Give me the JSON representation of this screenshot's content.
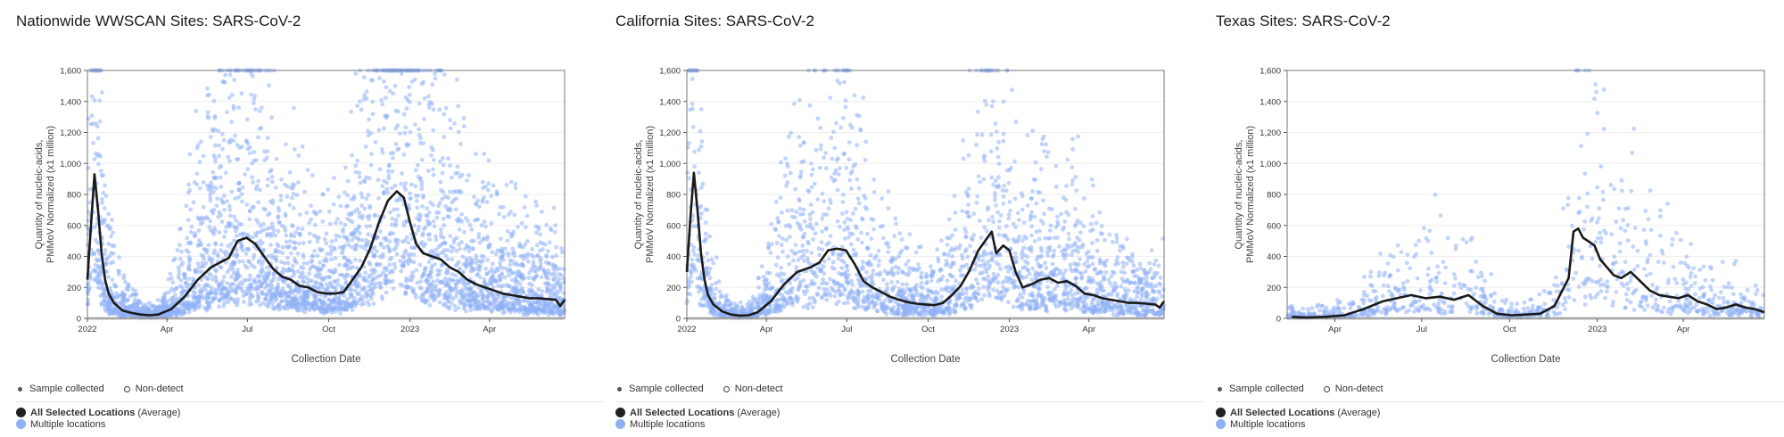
{
  "colors": {
    "point": "#8fb0f5",
    "line": "#1a1a1a",
    "axis": "#555555",
    "grid": "#eeeeee"
  },
  "legend": {
    "sample_collected": "Sample collected",
    "non_detect": "Non-detect",
    "average_bold": "All Selected Locations",
    "average_suffix": "(Average)",
    "multiple": "Multiple locations"
  },
  "chart_data": [
    {
      "type": "scatter",
      "title": "Nationwide WWSCAN Sites: SARS-CoV-2",
      "xlabel": "Collection Date",
      "ylabel": [
        "Quantity of nucleic-acids,",
        "PMMoV Normalized (x1 million)"
      ],
      "ylim": [
        0,
        1600
      ],
      "yticks": [
        "0",
        "200",
        "400",
        "600",
        "800",
        "1,000",
        "1,200",
        "1,400",
        "1,600"
      ],
      "xlim": [
        0,
        540
      ],
      "xticks": [
        {
          "label": "2022",
          "x": 0
        },
        {
          "label": "Apr",
          "x": 90
        },
        {
          "label": "Jul",
          "x": 181
        },
        {
          "label": "Oct",
          "x": 273
        },
        {
          "label": "2023",
          "x": 365
        },
        {
          "label": "Apr",
          "x": 455
        }
      ],
      "density": 1.0,
      "series": [
        {
          "name": "All Selected Locations (Average)",
          "x": [
            0,
            4,
            8,
            12,
            16,
            20,
            24,
            30,
            40,
            50,
            60,
            70,
            80,
            95,
            110,
            125,
            140,
            150,
            160,
            170,
            180,
            190,
            200,
            210,
            220,
            230,
            240,
            250,
            260,
            270,
            280,
            290,
            300,
            310,
            320,
            330,
            340,
            350,
            358,
            365,
            372,
            380,
            390,
            400,
            410,
            420,
            430,
            440,
            450,
            460,
            470,
            480,
            490,
            500,
            510,
            520,
            530,
            535,
            540
          ],
          "y": [
            250,
            600,
            930,
            700,
            420,
            250,
            160,
            100,
            50,
            35,
            25,
            20,
            25,
            60,
            140,
            250,
            330,
            360,
            390,
            500,
            520,
            480,
            400,
            320,
            270,
            250,
            210,
            200,
            170,
            160,
            160,
            170,
            250,
            330,
            450,
            620,
            760,
            820,
            780,
            620,
            480,
            420,
            400,
            380,
            330,
            300,
            250,
            220,
            200,
            180,
            160,
            150,
            140,
            130,
            130,
            125,
            120,
            80,
            120
          ]
        },
        {
          "name": "Multiple locations",
          "kind": "scatter"
        }
      ]
    },
    {
      "type": "scatter",
      "title": "California Sites: SARS-CoV-2",
      "xlabel": "Collection Date",
      "ylabel": [
        "Quantity of nucleic-acids,",
        "PMMoV Normalized (x1 million)"
      ],
      "ylim": [
        0,
        1600
      ],
      "yticks": [
        "0",
        "200",
        "400",
        "600",
        "800",
        "1,000",
        "1,200",
        "1,400",
        "1,600"
      ],
      "xlim": [
        0,
        540
      ],
      "xticks": [
        {
          "label": "2022",
          "x": 0
        },
        {
          "label": "Apr",
          "x": 90
        },
        {
          "label": "Jul",
          "x": 181
        },
        {
          "label": "Oct",
          "x": 273
        },
        {
          "label": "2023",
          "x": 365
        },
        {
          "label": "Apr",
          "x": 455
        }
      ],
      "density": 0.7,
      "series": [
        {
          "name": "All Selected Locations (Average)",
          "x": [
            0,
            4,
            8,
            12,
            16,
            20,
            24,
            30,
            40,
            50,
            60,
            70,
            80,
            95,
            110,
            125,
            140,
            150,
            160,
            170,
            180,
            190,
            200,
            210,
            220,
            230,
            240,
            250,
            260,
            270,
            280,
            290,
            300,
            310,
            320,
            330,
            340,
            345,
            350,
            358,
            365,
            372,
            380,
            390,
            400,
            410,
            420,
            430,
            440,
            450,
            460,
            470,
            480,
            490,
            500,
            510,
            520,
            530,
            535,
            540
          ],
          "y": [
            300,
            650,
            940,
            700,
            420,
            250,
            150,
            90,
            45,
            25,
            18,
            20,
            40,
            110,
            220,
            300,
            330,
            360,
            440,
            450,
            440,
            350,
            240,
            200,
            170,
            140,
            120,
            105,
            95,
            90,
            85,
            100,
            150,
            210,
            310,
            440,
            520,
            560,
            420,
            470,
            440,
            300,
            200,
            220,
            250,
            260,
            230,
            240,
            210,
            160,
            150,
            130,
            120,
            110,
            100,
            100,
            95,
            90,
            70,
            110
          ]
        },
        {
          "name": "Multiple locations",
          "kind": "scatter"
        }
      ]
    },
    {
      "type": "scatter",
      "title": "Texas Sites: SARS-CoV-2",
      "xlabel": "Collection Date",
      "ylabel": [
        "Quantity of nucleic-acids,",
        "PMMoV Normalized (x1 million)"
      ],
      "ylim": [
        0,
        1600
      ],
      "yticks": [
        "0",
        "200",
        "400",
        "600",
        "800",
        "1,000",
        "1,200",
        "1,400",
        "1,600"
      ],
      "xlim": [
        40,
        540
      ],
      "xticks": [
        {
          "label": "Apr",
          "x": 90
        },
        {
          "label": "Jul",
          "x": 181
        },
        {
          "label": "Oct",
          "x": 273
        },
        {
          "label": "2023",
          "x": 365
        },
        {
          "label": "Apr",
          "x": 455
        }
      ],
      "density": 0.25,
      "series": [
        {
          "name": "All Selected Locations (Average)",
          "x": [
            45,
            60,
            80,
            100,
            120,
            140,
            155,
            170,
            185,
            200,
            215,
            230,
            245,
            260,
            275,
            290,
            305,
            320,
            335,
            340,
            345,
            350,
            355,
            362,
            368,
            375,
            382,
            390,
            400,
            410,
            420,
            430,
            440,
            450,
            460,
            470,
            480,
            490,
            500,
            510,
            520,
            530,
            540
          ],
          "y": [
            10,
            5,
            10,
            20,
            60,
            110,
            130,
            150,
            130,
            140,
            120,
            150,
            80,
            30,
            20,
            25,
            30,
            80,
            260,
            560,
            580,
            520,
            500,
            470,
            380,
            330,
            280,
            260,
            300,
            240,
            180,
            150,
            140,
            130,
            150,
            110,
            90,
            60,
            70,
            90,
            70,
            60,
            40
          ]
        },
        {
          "name": "Multiple locations",
          "kind": "scatter"
        }
      ]
    }
  ]
}
